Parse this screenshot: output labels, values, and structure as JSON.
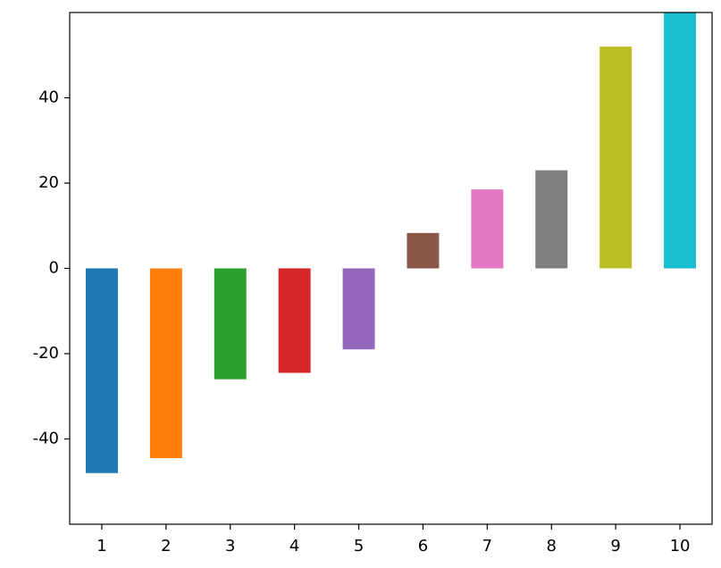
{
  "chart_data": {
    "type": "bar",
    "categories": [
      "1",
      "2",
      "3",
      "4",
      "5",
      "6",
      "7",
      "8",
      "9",
      "10"
    ],
    "values": [
      -48,
      -44.5,
      -26,
      -24.5,
      -19,
      8.3,
      18.5,
      23,
      52,
      60
    ],
    "colors": [
      "#1f77b4",
      "#ff7f0e",
      "#2ca02c",
      "#d62728",
      "#9467bd",
      "#8c564b",
      "#e377c2",
      "#7f7f7f",
      "#bcbd22",
      "#17becf"
    ],
    "ylim": [
      -60,
      60
    ],
    "yticks": [
      -40,
      -20,
      0,
      20,
      40
    ],
    "grid": false
  }
}
